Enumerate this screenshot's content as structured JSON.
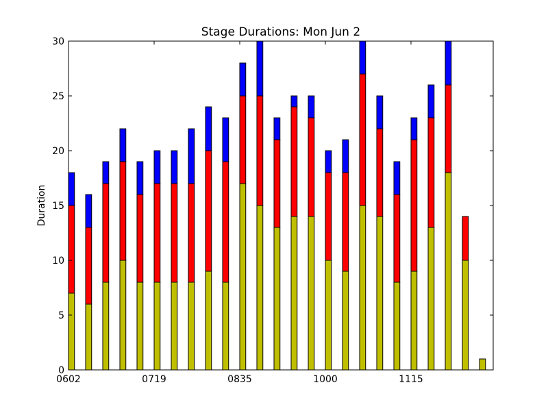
{
  "chart_data": {
    "type": "bar",
    "stacked": true,
    "title": "Stage Durations: Mon Jun 2",
    "xlabel": "",
    "ylabel": "Duration",
    "ylim": [
      0,
      30
    ],
    "yticks": [
      0,
      5,
      10,
      15,
      20,
      25,
      30
    ],
    "xtick_labels": [
      {
        "index": 0,
        "label": "0602"
      },
      {
        "index": 5,
        "label": "0719"
      },
      {
        "index": 10,
        "label": "0835"
      },
      {
        "index": 15,
        "label": "1000"
      },
      {
        "index": 20,
        "label": "1115"
      }
    ],
    "bar_count": 25,
    "grid": false,
    "series": [
      {
        "color": "#bfbf00",
        "values": [
          7,
          6,
          8,
          10,
          8,
          8,
          8,
          8,
          9,
          8,
          17,
          15,
          13,
          14,
          14,
          10,
          9,
          15,
          14,
          8,
          9,
          13,
          18,
          10,
          1
        ]
      },
      {
        "color": "#ff0000",
        "values": [
          8,
          7,
          9,
          9,
          8,
          9,
          9,
          9,
          11,
          11,
          8,
          10,
          8,
          10,
          9,
          8,
          9,
          12,
          8,
          8,
          12,
          10,
          8,
          4,
          0
        ]
      },
      {
        "color": "#0000ff",
        "values": [
          3,
          3,
          2,
          3,
          3,
          3,
          3,
          5,
          4,
          4,
          3,
          5,
          2,
          1,
          2,
          2,
          3,
          3,
          3,
          3,
          2,
          3,
          4,
          0,
          0
        ]
      }
    ]
  }
}
